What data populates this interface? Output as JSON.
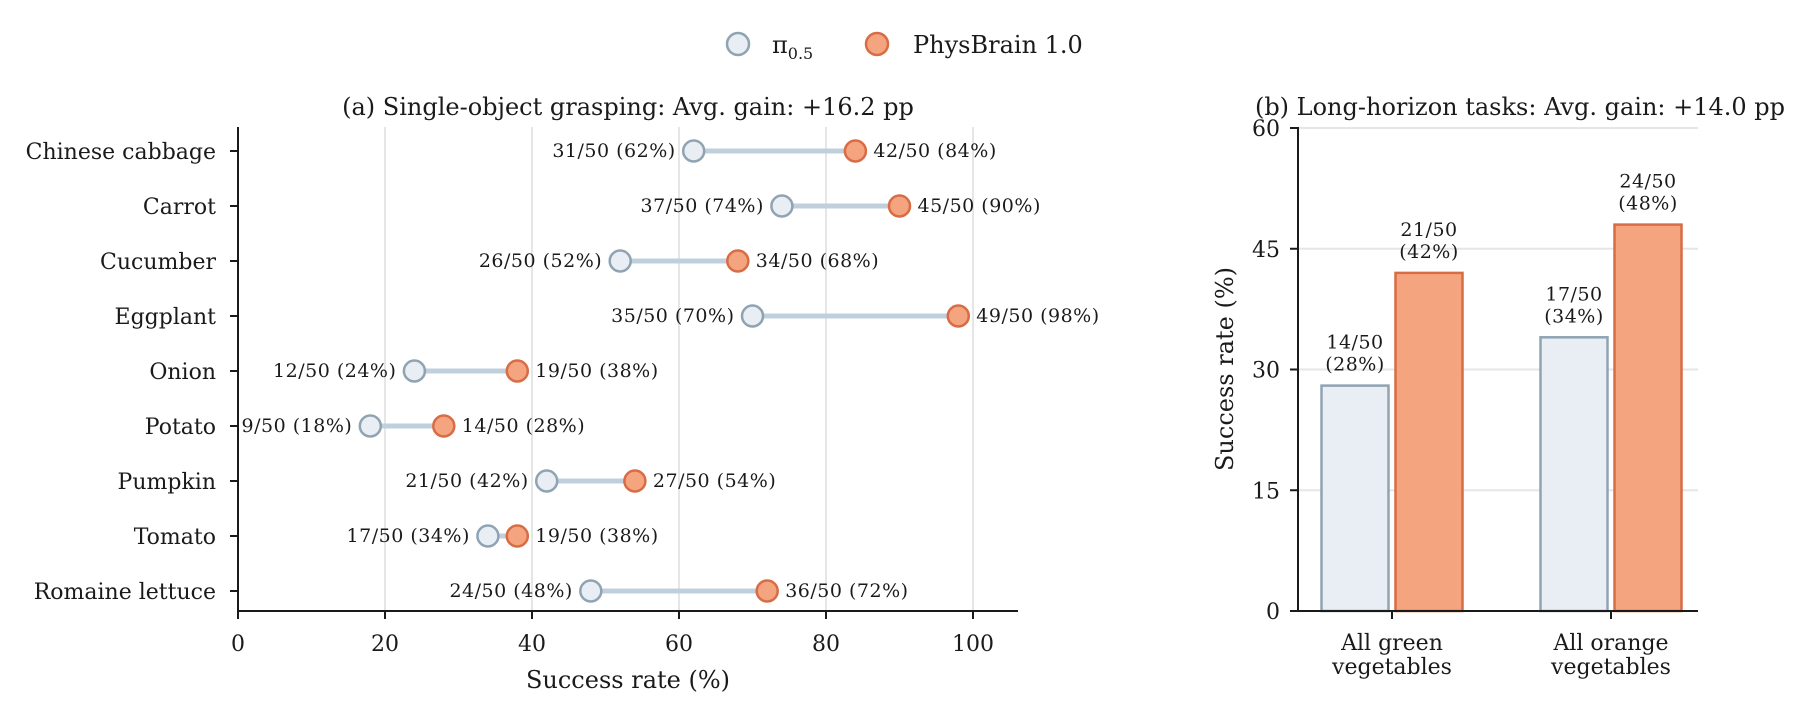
{
  "legend": {
    "items": [
      {
        "label": "π",
        "sub": "0.5",
        "color_fill": "#e8eef3",
        "color_edge": "#8fa3b3"
      },
      {
        "label": "PhysBrain 1.0",
        "color_fill": "#f4a47f",
        "color_edge": "#d86c45"
      }
    ]
  },
  "chart_data": [
    {
      "type": "dumbbell",
      "title": "(a) Single-object grasping: Avg. gain: +16.2 pp",
      "xlabel": "Success rate (%)",
      "ylabel": "",
      "xlim": [
        0,
        106
      ],
      "xticks": [
        0,
        20,
        40,
        60,
        80,
        100
      ],
      "grid": "vertical",
      "categories": [
        "Chinese cabbage",
        "Carrot",
        "Cucumber",
        "Eggplant",
        "Onion",
        "Potato",
        "Pumpkin",
        "Tomato",
        "Romaine lettuce"
      ],
      "series": [
        {
          "name": "π0.5",
          "values": [
            62,
            74,
            52,
            70,
            24,
            18,
            42,
            34,
            48
          ],
          "labels": [
            "31/50 (62%)",
            "37/50 (74%)",
            "26/50 (52%)",
            "35/50 (70%)",
            "12/50 (24%)",
            "9/50 (18%)",
            "21/50 (42%)",
            "17/50 (34%)",
            "24/50 (48%)"
          ]
        },
        {
          "name": "PhysBrain 1.0",
          "values": [
            84,
            90,
            68,
            98,
            38,
            28,
            54,
            38,
            72
          ],
          "labels": [
            "42/50 (84%)",
            "45/50 (90%)",
            "34/50 (68%)",
            "49/50 (98%)",
            "19/50 (38%)",
            "14/50 (28%)",
            "27/50 (54%)",
            "19/50 (38%)",
            "36/50 (72%)"
          ]
        }
      ]
    },
    {
      "type": "bar",
      "title": "(b) Long-horizon tasks: Avg. gain: +14.0 pp",
      "xlabel": "",
      "ylabel": "Success rate (%)",
      "ylim": [
        0,
        60
      ],
      "yticks": [
        0,
        15,
        30,
        45,
        60
      ],
      "grid": "horizontal",
      "categories": [
        [
          "All green",
          "vegetables"
        ],
        [
          "All orange",
          "vegetables"
        ]
      ],
      "series": [
        {
          "name": "π0.5",
          "values": [
            28,
            34
          ],
          "labels": [
            [
              "14/50",
              "(28%)"
            ],
            [
              "17/50",
              "(34%)"
            ]
          ]
        },
        {
          "name": "PhysBrain 1.0",
          "values": [
            42,
            48
          ],
          "labels": [
            [
              "21/50",
              "(42%)"
            ],
            [
              "24/50",
              "(48%)"
            ]
          ]
        }
      ]
    }
  ]
}
